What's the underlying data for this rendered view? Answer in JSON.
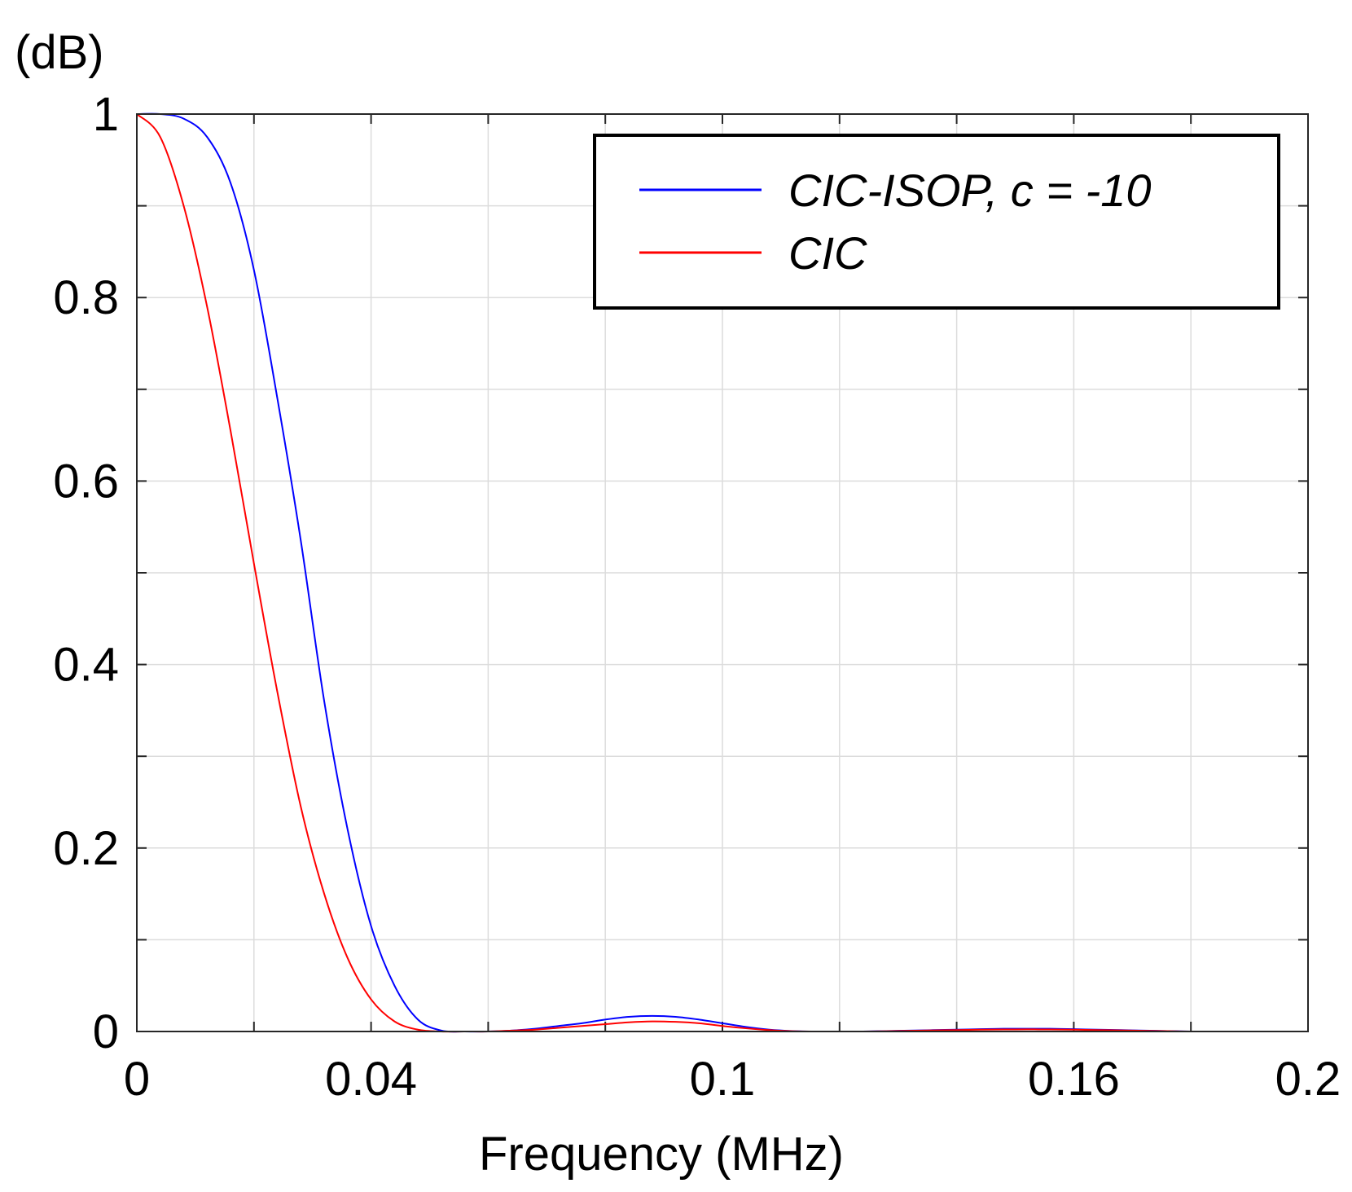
{
  "chart_data": {
    "type": "line",
    "title": "",
    "xlabel": "Frequency (MHz)",
    "ylabel": "(dB)",
    "xlim": [
      0,
      0.2
    ],
    "ylim": [
      0,
      1
    ],
    "xticks": [
      0,
      0.02,
      0.04,
      0.06,
      0.08,
      0.1,
      0.12,
      0.14,
      0.16,
      0.18,
      0.2
    ],
    "xtick_labels": [
      {
        "value": 0,
        "label": "0"
      },
      {
        "value": 0.04,
        "label": "0.04"
      },
      {
        "value": 0.1,
        "label": "0.1"
      },
      {
        "value": 0.16,
        "label": "0.16"
      },
      {
        "value": 0.2,
        "label": "0.2"
      }
    ],
    "yticks": [
      0,
      0.1,
      0.2,
      0.3,
      0.4,
      0.5,
      0.6,
      0.7,
      0.8,
      0.9,
      1
    ],
    "ytick_labels": [
      {
        "value": 0,
        "label": "0"
      },
      {
        "value": 0.2,
        "label": "0.2"
      },
      {
        "value": 0.4,
        "label": "0.4"
      },
      {
        "value": 0.6,
        "label": "0.6"
      },
      {
        "value": 0.8,
        "label": "0.8"
      },
      {
        "value": 1,
        "label": "1"
      }
    ],
    "grid": true,
    "legend_position": "top-right",
    "series": [
      {
        "name": "CIC-ISOP, c = -10",
        "color": "#0000ff",
        "x": [
          0,
          0.004,
          0.008,
          0.012,
          0.016,
          0.02,
          0.024,
          0.028,
          0.032,
          0.036,
          0.04,
          0.044,
          0.048,
          0.052,
          0.056,
          0.06,
          0.064,
          0.068,
          0.072,
          0.076,
          0.08,
          0.084,
          0.088,
          0.092,
          0.096,
          0.1,
          0.104,
          0.108,
          0.112,
          0.116,
          0.12,
          0.124,
          0.128,
          0.132,
          0.136,
          0.14,
          0.144,
          0.148,
          0.152,
          0.156,
          0.16,
          0.164,
          0.168,
          0.172,
          0.176,
          0.18,
          0.184,
          0.188,
          0.192,
          0.196,
          0.2
        ],
        "y": [
          1.0,
          1.0,
          0.995,
          0.975,
          0.925,
          0.83,
          0.69,
          0.535,
          0.36,
          0.22,
          0.115,
          0.05,
          0.013,
          0.001,
          0.0,
          0.0,
          0.001,
          0.003,
          0.006,
          0.009,
          0.013,
          0.016,
          0.017,
          0.016,
          0.013,
          0.009,
          0.005,
          0.002,
          0.0005,
          0.0,
          0.0,
          0.0,
          0.0005,
          0.001,
          0.0015,
          0.002,
          0.0025,
          0.003,
          0.003,
          0.003,
          0.0025,
          0.002,
          0.0015,
          0.001,
          0.0005,
          0.0,
          0.0,
          0.0,
          0.0,
          0.0,
          0.0
        ]
      },
      {
        "name": "CIC",
        "color": "#ff0000",
        "x": [
          0,
          0.004,
          0.008,
          0.012,
          0.016,
          0.02,
          0.024,
          0.028,
          0.032,
          0.036,
          0.04,
          0.044,
          0.048,
          0.052,
          0.056,
          0.06,
          0.064,
          0.068,
          0.072,
          0.076,
          0.08,
          0.084,
          0.088,
          0.092,
          0.096,
          0.1,
          0.104,
          0.108,
          0.112,
          0.116,
          0.12,
          0.124,
          0.128,
          0.132,
          0.136,
          0.14,
          0.144,
          0.148,
          0.152,
          0.156,
          0.16,
          0.164,
          0.168,
          0.172,
          0.176,
          0.18,
          0.184,
          0.188,
          0.192,
          0.196,
          0.2
        ],
        "y": [
          1.0,
          0.975,
          0.9,
          0.79,
          0.655,
          0.51,
          0.37,
          0.245,
          0.15,
          0.08,
          0.035,
          0.011,
          0.002,
          0.0,
          0.0,
          0.0,
          0.001,
          0.002,
          0.004,
          0.006,
          0.008,
          0.01,
          0.011,
          0.0105,
          0.009,
          0.006,
          0.0035,
          0.0015,
          0.0003,
          0.0,
          0.0,
          0.0,
          0.0003,
          0.0008,
          0.0012,
          0.0016,
          0.002,
          0.0022,
          0.0023,
          0.0022,
          0.002,
          0.0016,
          0.0012,
          0.0008,
          0.0004,
          0.0,
          0.0,
          0.0,
          0.0,
          0.0,
          0.0
        ]
      }
    ]
  }
}
